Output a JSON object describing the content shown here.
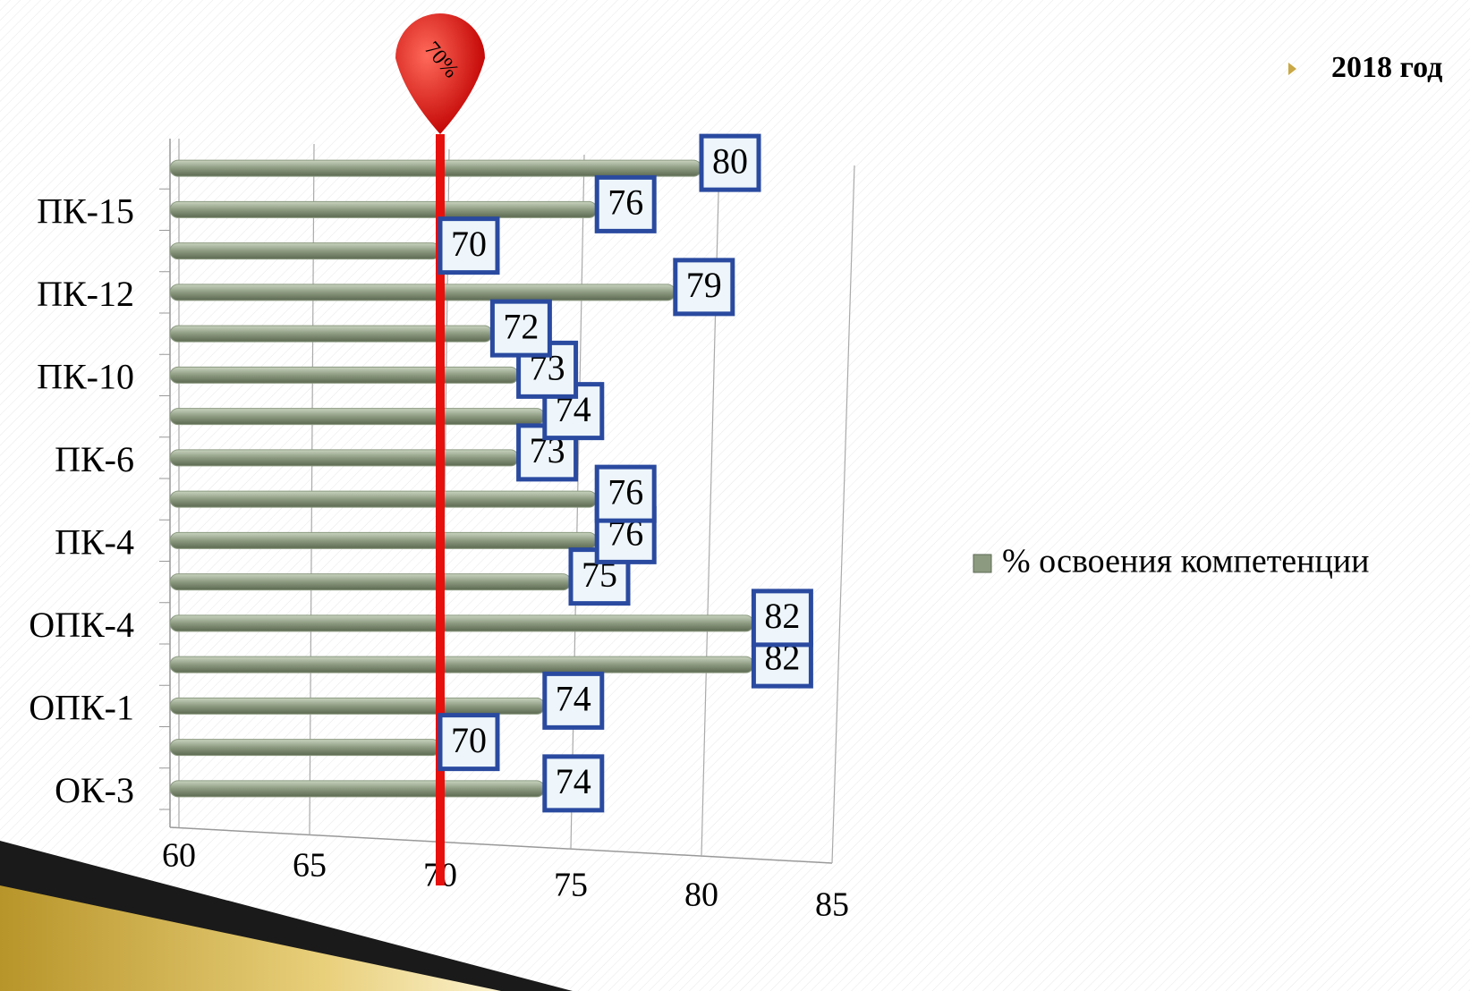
{
  "chart_data": {
    "type": "bar",
    "orientation": "horizontal",
    "title": "2018 год",
    "categories": [
      "ОК-3",
      null,
      "ОПК-1",
      null,
      "ОПК-4",
      null,
      "ПК-4",
      null,
      "ПК-6",
      null,
      "ПК-10",
      null,
      "ПК-12",
      null,
      "ПК-15",
      null
    ],
    "series": [
      {
        "name": "% освоения компетенции",
        "color": "#8c9a80",
        "values": [
          74,
          70,
          74,
          82,
          82,
          75,
          76,
          76,
          73,
          74,
          73,
          72,
          79,
          70,
          76,
          80
        ]
      }
    ],
    "xlim": [
      60,
      85
    ],
    "xticks": [
      60,
      65,
      70,
      75,
      80,
      85
    ],
    "grid": true,
    "legend": "right",
    "reference_line": {
      "value": 70,
      "label": "70%",
      "color": "#e8100c"
    }
  }
}
